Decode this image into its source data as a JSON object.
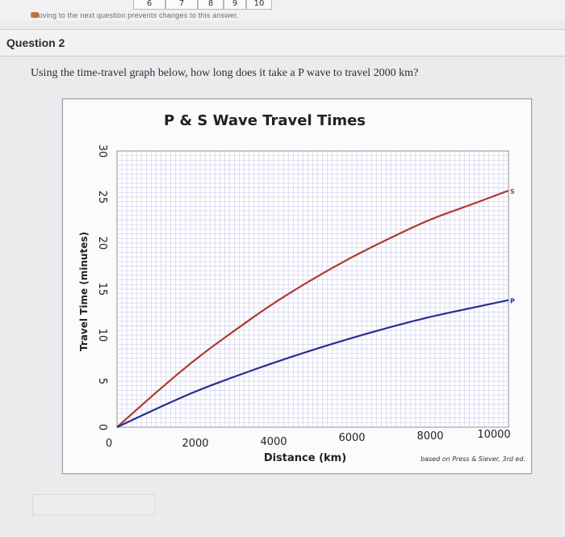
{
  "nav": {
    "visible_numbers": [
      "6",
      "7",
      "8",
      "9",
      "10"
    ],
    "warning_text": "Moving to the next question prevents changes to this answer."
  },
  "question": {
    "title": "Question 2",
    "prompt": "Using the time-travel graph below, how long does it take a P wave to travel 2000 km?"
  },
  "colors": {
    "s_wave": "#b03a2e",
    "p_wave": "#2a2f8f",
    "grid": "#d0d0ee",
    "plot_bg": "#ffffff"
  },
  "chart_data": {
    "type": "line",
    "title": "P & S Wave Travel Times",
    "xlabel": "Distance (km)",
    "ylabel": "Travel Time (minutes)",
    "xlim": [
      0,
      10000
    ],
    "ylim": [
      0,
      30
    ],
    "x_ticks": [
      "0",
      "2000",
      "4000",
      "6000",
      "8000",
      "10000"
    ],
    "y_ticks": [
      "0",
      "5",
      "10",
      "15",
      "20",
      "25",
      "30"
    ],
    "grid": true,
    "source_note": "based on Press & Siever, 3rd ed.",
    "series": [
      {
        "name": "S",
        "x": [
          0,
          1000,
          2000,
          3000,
          4000,
          5000,
          6000,
          7000,
          8000,
          9000,
          10000
        ],
        "y": [
          0,
          3.8,
          7.4,
          10.5,
          13.5,
          16.1,
          18.5,
          20.6,
          22.6,
          24.1,
          25.7
        ]
      },
      {
        "name": "P",
        "x": [
          0,
          1000,
          2000,
          3000,
          4000,
          5000,
          6000,
          7000,
          8000,
          9000,
          10000
        ],
        "y": [
          0,
          2.0,
          3.9,
          5.5,
          7.0,
          8.4,
          9.7,
          10.9,
          12.0,
          12.9,
          13.8
        ]
      }
    ]
  }
}
